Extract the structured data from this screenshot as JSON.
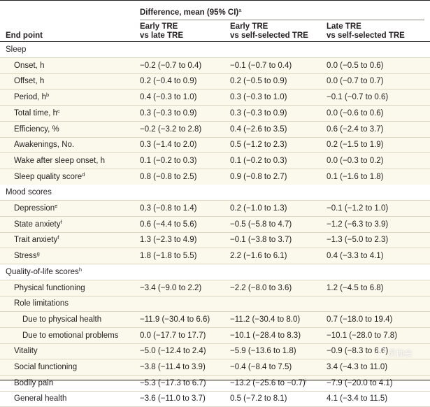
{
  "header": {
    "diff_label": "Difference, mean (95% CI)",
    "diff_sup": "a",
    "endpoint_label": "End point",
    "columns": [
      {
        "line1": "Early TRE",
        "line2": "vs late TRE"
      },
      {
        "line1": "Early TRE",
        "line2": "vs self-selected TRE"
      },
      {
        "line1": "Late TRE",
        "line2": "vs self-selected TRE"
      }
    ]
  },
  "rows": [
    {
      "kind": "section",
      "label": "Sleep"
    },
    {
      "kind": "item",
      "label": "Onset, h",
      "sup": "",
      "values": [
        "−0.2 (−0.7 to 0.4)",
        "−0.1 (−0.7 to 0.4)",
        "0.0 (−0.5 to 0.6)"
      ]
    },
    {
      "kind": "item",
      "label": "Offset, h",
      "sup": "",
      "values": [
        "0.2 (−0.4 to 0.9)",
        "0.2 (−0.5 to 0.9)",
        "0.0 (−0.7 to 0.7)"
      ]
    },
    {
      "kind": "item",
      "label": "Period, h",
      "sup": "b",
      "values": [
        "0.4 (−0.3 to 1.0)",
        "0.3 (−0.3 to 1.0)",
        "−0.1 (−0.7 to 0.6)"
      ]
    },
    {
      "kind": "item",
      "label": "Total time, h",
      "sup": "c",
      "values": [
        "0.3 (−0.3 to 0.9)",
        "0.3 (−0.3 to 0.9)",
        "0.0 (−0.6 to 0.6)"
      ]
    },
    {
      "kind": "item",
      "label": "Efficiency, %",
      "sup": "",
      "values": [
        "−0.2 (−3.2 to 2.8)",
        "0.4 (−2.6 to 3.5)",
        "0.6 (−2.4 to 3.7)"
      ]
    },
    {
      "kind": "item",
      "label": "Awakenings, No.",
      "sup": "",
      "values": [
        "0.3 (−1.4 to 2.0)",
        "0.5 (−1.2 to 2.3)",
        "0.2 (−1.5 to 1.9)"
      ]
    },
    {
      "kind": "item",
      "label": "Wake after sleep onset, h",
      "sup": "",
      "values": [
        "0.1 (−0.2 to 0.3)",
        "0.1 (−0.2 to 0.3)",
        "0.0 (−0.3 to 0.2)"
      ]
    },
    {
      "kind": "item",
      "label": "Sleep quality score",
      "sup": "d",
      "values": [
        "0.8 (−0.8 to 2.5)",
        "0.9 (−0.8 to 2.7)",
        "0.1 (−1.6 to 1.8)"
      ]
    },
    {
      "kind": "section",
      "label": "Mood scores"
    },
    {
      "kind": "item",
      "label": "Depression",
      "sup": "e",
      "values": [
        "0.3 (−0.8 to 1.4)",
        "0.2 (−1.0 to 1.3)",
        "−0.1 (−1.2 to 1.0)"
      ]
    },
    {
      "kind": "item",
      "label": "State anxiety",
      "sup": "f",
      "values": [
        "0.6 (−4.4 to 5.6)",
        "−0.5 (−5.8 to 4.7)",
        "−1.2 (−6.3 to 3.9)"
      ]
    },
    {
      "kind": "item",
      "label": "Trait anxiety",
      "sup": "f",
      "values": [
        "1.3 (−2.3 to 4.9)",
        "−0.1 (−3.8 to 3.7)",
        "−1.3 (−5.0 to 2.3)"
      ]
    },
    {
      "kind": "item",
      "label": "Stress",
      "sup": "g",
      "values": [
        "1.8 (−1.8 to 5.5)",
        "2.2 (−1.6 to 6.1)",
        "0.4 (−3.3 to 4.1)"
      ]
    },
    {
      "kind": "section",
      "label": "Quality-of-life scores",
      "sup": "h"
    },
    {
      "kind": "item",
      "label": "Physical functioning",
      "sup": "",
      "values": [
        "−3.4 (−9.0 to 2.2)",
        "−2.2 (−8.0 to 3.6)",
        "1.2 (−4.5 to 6.8)"
      ]
    },
    {
      "kind": "item",
      "label": "Role limitations",
      "sup": "",
      "values": [
        "",
        "",
        ""
      ]
    },
    {
      "kind": "sub",
      "label": "Due to physical health",
      "sup": "",
      "values": [
        "−11.9 (−30.4 to 6.6)",
        "−11.2 (−30.4 to 8.0)",
        "0.7 (−18.0 to 19.4)"
      ]
    },
    {
      "kind": "sub",
      "label": "Due to emotional problems",
      "sup": "",
      "values": [
        "0.0 (−17.7 to 17.7)",
        "−10.1 (−28.4 to 8.3)",
        "−10.1 (−28.0 to 7.8)"
      ]
    },
    {
      "kind": "item",
      "label": "Vitality",
      "sup": "",
      "values": [
        "−5.0 (−12.4 to 2.4)",
        "−5.9 (−13.6 to 1.8)",
        "−0.9 (−8.3 to 6.6)"
      ]
    },
    {
      "kind": "item",
      "label": "Social functioning",
      "sup": "",
      "values": [
        "−3.8 (−11.4 to 3.9)",
        "−0.4 (−8.4 to 7.5)",
        "3.4 (−4.3 to 11.0)"
      ]
    },
    {
      "kind": "item",
      "label": "Bodily pain",
      "sup": "",
      "values": [
        "−5.3 (−17.3 to 6.7)",
        "−13.2 (−25.6 to −0.7)",
        "−7.9 (−20.0 to 4.1)"
      ],
      "value_sups": [
        "",
        "i",
        ""
      ]
    },
    {
      "kind": "item",
      "label": "General health",
      "sup": "",
      "values": [
        "−3.6 (−11.0 to 3.7)",
        "0.5 (−7.2 to 8.1)",
        "4.1 (−3.4 to 11.5)"
      ]
    }
  ],
  "watermark": "灵伽会"
}
